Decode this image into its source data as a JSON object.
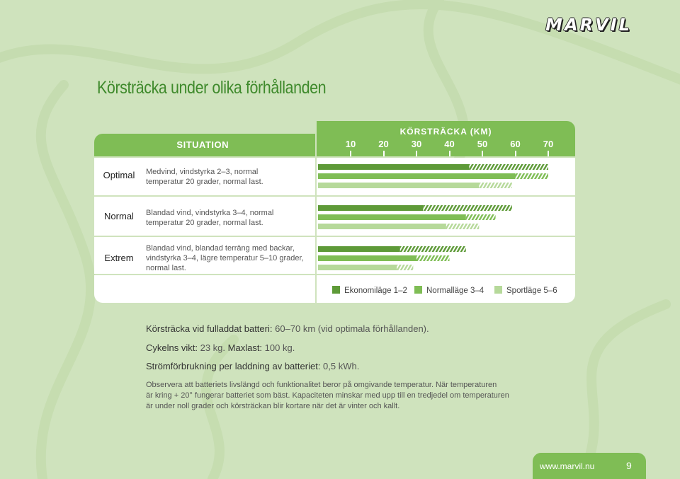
{
  "brand": {
    "logo_text": "MARVIL"
  },
  "title": "Körsträcka under olika förhållanden",
  "table": {
    "situation_header": "SITUATION",
    "range_header": "KÖRSTRÄCKA (KM)",
    "rows": [
      {
        "label": "Optimal",
        "description": [
          "Medvind, vindstyrka 2–3, normal",
          "temperatur 20 grader, normal last."
        ]
      },
      {
        "label": "Normal",
        "description": [
          "Blandad vind, vindstyrka 3–4, normal",
          "temperatur 20 grader, normal last."
        ]
      },
      {
        "label": "Extrem",
        "description": [
          "Blandad vind, blandad terräng med backar,",
          "vindstyrka 3–4, lägre temperatur 5–10 grader,",
          "normal last."
        ]
      }
    ]
  },
  "chart_data": {
    "type": "bar",
    "orientation": "horizontal",
    "x_ticks": [
      10,
      20,
      30,
      40,
      50,
      60,
      70
    ],
    "xlim": [
      10,
      70
    ],
    "categories": [
      "Optimal",
      "Normal",
      "Extrem"
    ],
    "series": [
      {
        "name": "Ekonomiläge 1–2",
        "color": "#5e9a38",
        "solid": [
          46,
          32,
          25
        ],
        "values": [
          70,
          59,
          45
        ]
      },
      {
        "name": "Normalläge 3–4",
        "color": "#7fbd55",
        "solid": [
          60,
          45,
          30
        ],
        "values": [
          70,
          54,
          40
        ]
      },
      {
        "name": "Sportläge 5–6",
        "color": "#b6d99a",
        "solid": [
          49,
          39,
          24
        ],
        "values": [
          59,
          49,
          29
        ]
      }
    ]
  },
  "legend": [
    {
      "label": "Ekonomiläge 1–2",
      "color": "#5e9a38"
    },
    {
      "label": "Normalläge 3–4",
      "color": "#7fbd55"
    },
    {
      "label": "Sportläge 5–6",
      "color": "#b6d99a"
    }
  ],
  "info": {
    "line1_label": "Körsträcka vid fulladdat batteri:",
    "line1_value": "60–70 km (vid optimala förhållanden).",
    "line2_label1": "Cykelns vikt:",
    "line2_value1": "23 kg.",
    "line2_label2": "Maxlast:",
    "line2_value2": "100 kg.",
    "line3_label": "Strömförbrukning per laddning av batteriet:",
    "line3_value": "0,5 kWh."
  },
  "note": [
    "Observera att batteriets livslängd och funktionalitet beror på omgivande temperatur. När temperaturen",
    "är kring + 20° fungerar batteriet som bäst. Kapaciteten minskar med upp till en tredjedel om temperaturen",
    "är under noll grader och körsträckan blir kortare när det är vinter och kallt."
  ],
  "footer": {
    "url": "www.marvil.nu",
    "page": "9"
  }
}
